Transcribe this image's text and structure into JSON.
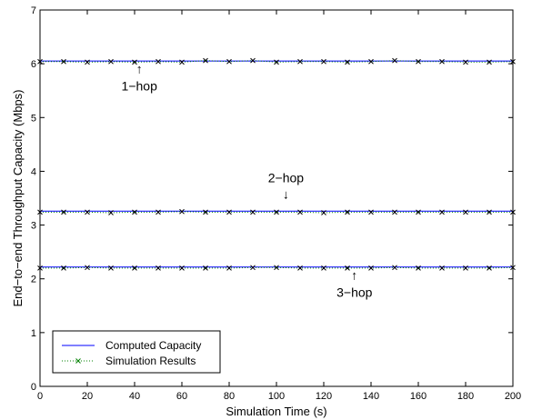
{
  "chart_data": {
    "type": "line",
    "xlabel": "Simulation Time (s)",
    "ylabel": "End−to−end Throughput Capacity (Mbps)",
    "xlim": [
      0,
      200
    ],
    "ylim": [
      0,
      7
    ],
    "xticks": [
      0,
      20,
      40,
      60,
      80,
      100,
      120,
      140,
      160,
      180,
      200
    ],
    "yticks": [
      0,
      1,
      2,
      3,
      4,
      5,
      6,
      7
    ],
    "grid": false,
    "legend_position": "bottom-left",
    "x": [
      0,
      10,
      20,
      30,
      40,
      50,
      60,
      70,
      80,
      90,
      100,
      110,
      120,
      130,
      140,
      150,
      160,
      170,
      180,
      190,
      200
    ],
    "series": [
      {
        "name": "Computed Capacity",
        "color": "#0000ff",
        "style": "solid",
        "levels": [
          6.05,
          3.26,
          2.22
        ]
      },
      {
        "name": "Simulation Results",
        "color": "#008000",
        "style": "dotted",
        "marker": "x",
        "groups": [
          {
            "values": [
              6.04,
              6.04,
              6.03,
              6.04,
              6.03,
              6.04,
              6.03,
              6.06,
              6.04,
              6.06,
              6.03,
              6.04,
              6.04,
              6.03,
              6.04,
              6.06,
              6.04,
              6.04,
              6.03,
              6.03,
              6.04
            ]
          },
          {
            "values": [
              3.24,
              3.24,
              3.24,
              3.23,
              3.24,
              3.24,
              3.25,
              3.24,
              3.24,
              3.24,
              3.24,
              3.24,
              3.23,
              3.24,
              3.24,
              3.24,
              3.24,
              3.24,
              3.24,
              3.24,
              3.24
            ]
          },
          {
            "values": [
              2.2,
              2.2,
              2.21,
              2.2,
              2.2,
              2.2,
              2.2,
              2.2,
              2.2,
              2.21,
              2.21,
              2.2,
              2.2,
              2.2,
              2.2,
              2.21,
              2.2,
              2.2,
              2.2,
              2.2,
              2.21
            ]
          }
        ]
      }
    ],
    "annotations": [
      {
        "text": "1−hop",
        "arrow": "↑",
        "x": 42,
        "y": 5.62
      },
      {
        "text": "2−hop",
        "arrow": "↓",
        "x": 104,
        "y": 3.8
      },
      {
        "text": "3−hop",
        "arrow": "↑",
        "x": 133,
        "y": 1.78
      }
    ]
  }
}
